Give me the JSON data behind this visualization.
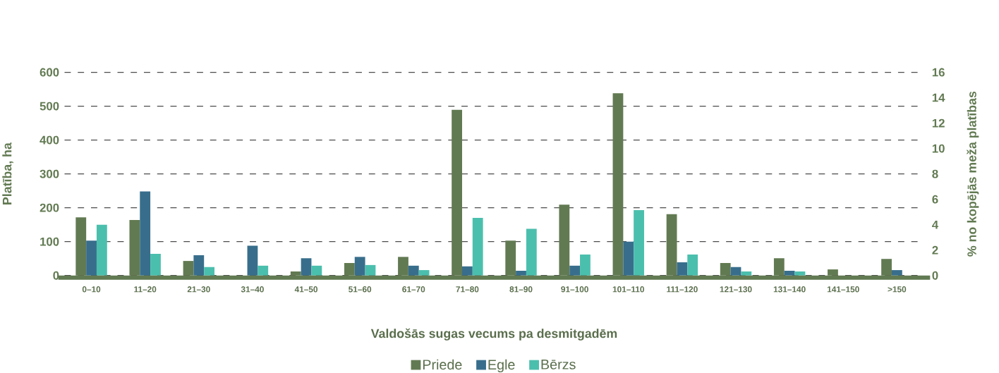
{
  "chart_data": {
    "type": "bar",
    "xlabel": "Valdošās sugas vecums pa desmitgadēm",
    "ylabel": "Platība, ha",
    "y2label": "% no kopējās meža platības",
    "categories": [
      "0–10",
      "11–20",
      "21–30",
      "31–40",
      "41–50",
      "51–60",
      "61–70",
      "71–80",
      "81–90",
      "91–100",
      "101–110",
      "111–120",
      "121–130",
      "131–140",
      "141–150",
      ">150"
    ],
    "series": [
      {
        "name": "Priede",
        "color": "#627a52",
        "values": [
          172,
          164,
          43,
          0,
          12,
          37,
          55,
          489,
          103,
          209,
          538,
          181,
          37,
          51,
          18,
          49
        ]
      },
      {
        "name": "Egle",
        "color": "#386e8c",
        "values": [
          103,
          248,
          60,
          88,
          51,
          55,
          29,
          27,
          14,
          29,
          100,
          39,
          25,
          14,
          0,
          16
        ]
      },
      {
        "name": "Bērzs",
        "color": "#4bbfad",
        "values": [
          150,
          64,
          25,
          29,
          29,
          31,
          16,
          170,
          138,
          62,
          193,
          62,
          12,
          12,
          0,
          0
        ]
      }
    ],
    "ylim": [
      0,
      600
    ],
    "yticks": [
      0,
      100,
      200,
      300,
      400,
      500,
      600
    ],
    "y2lim": [
      0,
      16
    ],
    "y2ticks": [
      0,
      2,
      4,
      6,
      8,
      10,
      12,
      14,
      16
    ],
    "grid": "y",
    "legend": "bottom"
  }
}
